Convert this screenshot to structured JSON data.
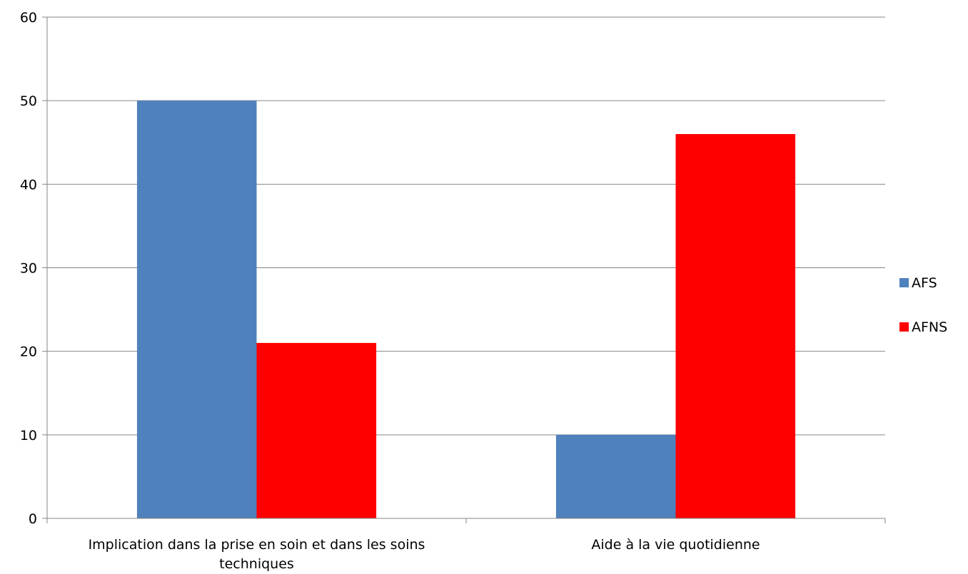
{
  "chart_data": {
    "type": "bar",
    "categories": [
      "Implication dans la prise en soin et dans les soins techniques",
      "Aide à la vie quotidienne"
    ],
    "category_label_lines": [
      [
        "Implication dans la prise en soin et dans les soins",
        "techniques"
      ],
      [
        "Aide à la vie quotidienne"
      ]
    ],
    "series": [
      {
        "name": "AFS",
        "values": [
          50,
          10
        ],
        "color": "#4F81BD"
      },
      {
        "name": "AFNS",
        "values": [
          21,
          46
        ],
        "color": "#FF0000"
      }
    ],
    "ylim": [
      0,
      60
    ],
    "yticks": [
      0,
      10,
      20,
      30,
      40,
      50,
      60
    ],
    "grid": true,
    "legend": "right"
  }
}
